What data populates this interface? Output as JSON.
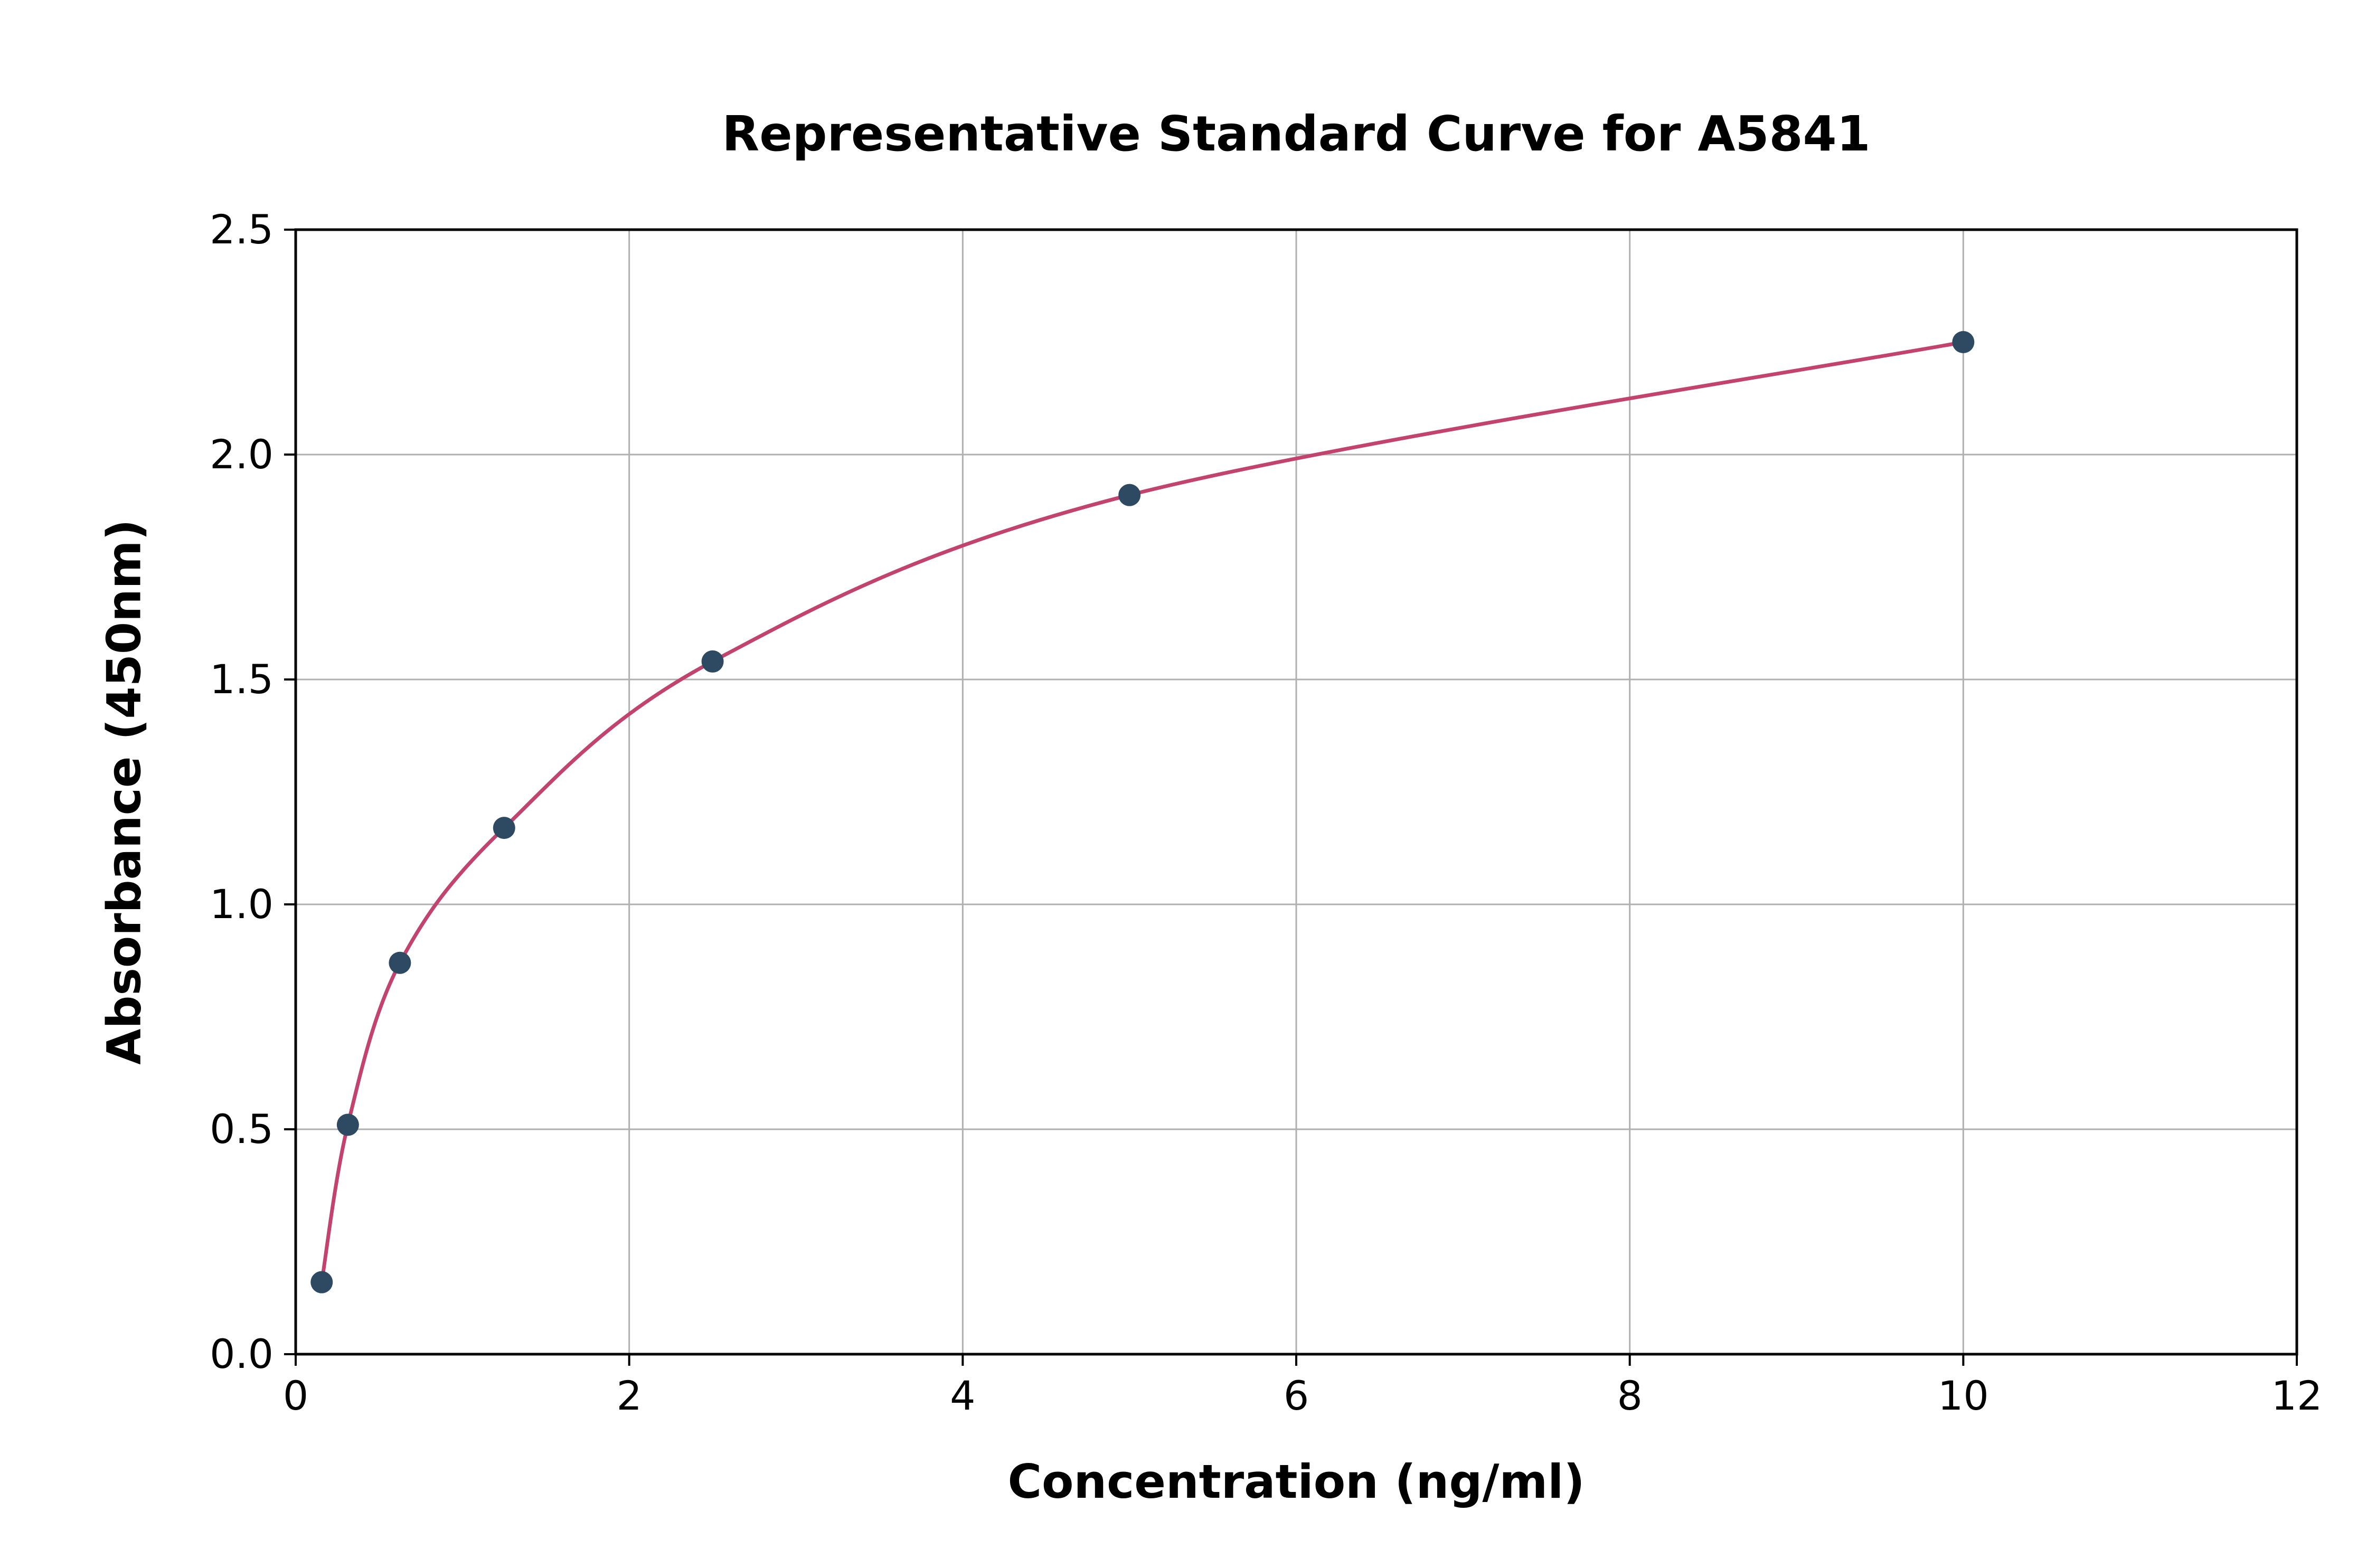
{
  "chart_data": {
    "type": "scatter",
    "title": "Representative Standard Curve for A5841",
    "xlabel": "Concentration (ng/ml)",
    "ylabel": "Absorbance (450nm)",
    "xlim": [
      0,
      12
    ],
    "ylim": [
      0.0,
      2.5
    ],
    "xticks": [
      0,
      2,
      4,
      6,
      8,
      10,
      12
    ],
    "xtick_labels": [
      "0",
      "2",
      "4",
      "6",
      "8",
      "10",
      "12"
    ],
    "yticks": [
      0.0,
      0.5,
      1.0,
      1.5,
      2.0,
      2.5
    ],
    "ytick_labels": [
      "0.0",
      "0.5",
      "1.0",
      "1.5",
      "2.0",
      "2.5"
    ],
    "grid": true,
    "legend": "none",
    "points": [
      {
        "x": 0.156,
        "y": 0.16
      },
      {
        "x": 0.313,
        "y": 0.51
      },
      {
        "x": 0.625,
        "y": 0.87
      },
      {
        "x": 1.25,
        "y": 1.17
      },
      {
        "x": 2.5,
        "y": 1.54
      },
      {
        "x": 5.0,
        "y": 1.91
      },
      {
        "x": 10.0,
        "y": 2.25
      }
    ],
    "colors": {
      "marker": "#2e4a63",
      "curve": "#c2436e",
      "grid": "#b0b0b0",
      "axis": "#000000",
      "background": "#ffffff"
    }
  }
}
